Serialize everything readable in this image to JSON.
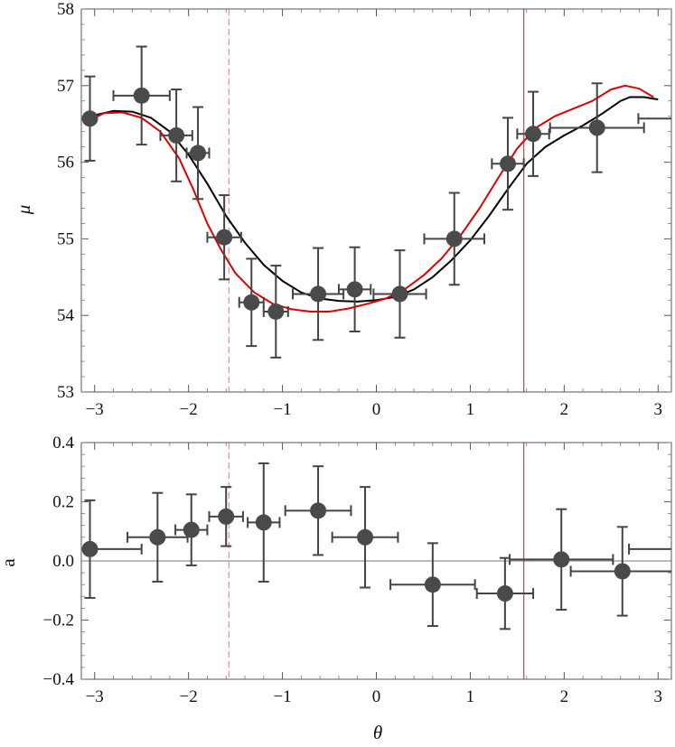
{
  "chart_data": [
    {
      "type": "scatter",
      "panel": "top",
      "ylabel": "μ",
      "xlim": [
        -3.14159,
        3.14159
      ],
      "ylim": [
        53,
        58
      ],
      "xticks": [
        -3,
        -2,
        -1,
        0,
        1,
        2,
        3
      ],
      "yticks": [
        53,
        54,
        55,
        56,
        57,
        58
      ],
      "vlines": [
        {
          "x": -1.5708,
          "color": "#e07a7a",
          "style": "dashed"
        },
        {
          "x": 1.5708,
          "color": "#b22222",
          "style": "solid"
        }
      ],
      "points": [
        {
          "x": -3.05,
          "y": 56.57,
          "xerr": [
            0.0,
            0.0
          ],
          "yerr": 0.55
        },
        {
          "x": -2.5,
          "y": 56.87,
          "xerr": [
            0.3,
            0.3
          ],
          "yerr": 0.64
        },
        {
          "x": -2.13,
          "y": 56.35,
          "xerr": [
            0.17,
            0.17
          ],
          "yerr": 0.6
        },
        {
          "x": -1.9,
          "y": 56.12,
          "xerr": [
            0.12,
            0.12
          ],
          "yerr": 0.6
        },
        {
          "x": -1.62,
          "y": 55.02,
          "xerr": [
            0.18,
            0.18
          ],
          "yerr": 0.55
        },
        {
          "x": -1.33,
          "y": 54.17,
          "xerr": [
            0.13,
            0.13
          ],
          "yerr": 0.57
        },
        {
          "x": -1.07,
          "y": 54.05,
          "xerr": [
            0.13,
            0.13
          ],
          "yerr": 0.6
        },
        {
          "x": -0.62,
          "y": 54.28,
          "xerr": [
            0.27,
            0.27
          ],
          "yerr": 0.6
        },
        {
          "x": -0.23,
          "y": 54.34,
          "xerr": [
            0.17,
            0.17
          ],
          "yerr": 0.55
        },
        {
          "x": 0.25,
          "y": 54.28,
          "xerr": [
            0.28,
            0.28
          ],
          "yerr": 0.57
        },
        {
          "x": 0.83,
          "y": 55.0,
          "xerr": [
            0.32,
            0.32
          ],
          "yerr": 0.6
        },
        {
          "x": 1.4,
          "y": 55.98,
          "xerr": [
            0.17,
            0.17
          ],
          "yerr": 0.6
        },
        {
          "x": 1.67,
          "y": 56.37,
          "xerr": [
            0.17,
            0.17
          ],
          "yerr": 0.55
        },
        {
          "x": 2.35,
          "y": 56.45,
          "xerr": [
            0.5,
            0.5
          ],
          "yerr": 0.58
        },
        {
          "x": 3.14,
          "y": 56.57,
          "xerr": [
            0.35,
            0.0
          ],
          "yerr": 0.0
        }
      ],
      "curves": [
        {
          "color": "#000000",
          "x": [
            -3.05,
            -2.8,
            -2.6,
            -2.4,
            -2.2,
            -2.0,
            -1.8,
            -1.6,
            -1.4,
            -1.2,
            -1.0,
            -0.8,
            -0.6,
            -0.4,
            -0.2,
            0.0,
            0.2,
            0.4,
            0.6,
            0.8,
            1.0,
            1.2,
            1.4,
            1.6,
            1.8,
            2.0,
            2.2,
            2.4,
            2.6,
            2.7,
            2.85,
            3.0
          ],
          "y": [
            56.6,
            56.67,
            56.66,
            56.58,
            56.4,
            56.1,
            55.72,
            55.3,
            54.95,
            54.66,
            54.45,
            54.3,
            54.22,
            54.19,
            54.18,
            54.2,
            54.24,
            54.34,
            54.5,
            54.72,
            54.98,
            55.3,
            55.65,
            55.98,
            56.2,
            56.35,
            56.48,
            56.63,
            56.8,
            56.85,
            56.85,
            56.82
          ]
        },
        {
          "color": "#e00000",
          "x": [
            -3.05,
            -2.9,
            -2.7,
            -2.5,
            -2.3,
            -2.1,
            -1.95,
            -1.8,
            -1.65,
            -1.5,
            -1.3,
            -1.1,
            -0.9,
            -0.7,
            -0.5,
            -0.3,
            -0.1,
            0.1,
            0.3,
            0.5,
            0.7,
            0.9,
            1.1,
            1.3,
            1.5,
            1.7,
            1.9,
            2.1,
            2.3,
            2.5,
            2.65,
            2.8,
            2.95
          ],
          "y": [
            56.55,
            56.64,
            56.65,
            56.58,
            56.4,
            56.05,
            55.65,
            55.2,
            54.85,
            54.55,
            54.3,
            54.15,
            54.08,
            54.05,
            54.05,
            54.09,
            54.15,
            54.22,
            54.34,
            54.52,
            54.75,
            55.05,
            55.4,
            55.8,
            56.18,
            56.45,
            56.6,
            56.7,
            56.8,
            56.95,
            57.0,
            56.96,
            56.85
          ]
        }
      ]
    },
    {
      "type": "scatter",
      "panel": "bottom",
      "xlabel": "θ",
      "ylabel": "a",
      "xlim": [
        -3.14159,
        3.14159
      ],
      "ylim": [
        -0.4,
        0.4
      ],
      "xticks": [
        -3,
        -2,
        -1,
        0,
        1,
        2,
        3
      ],
      "yticks": [
        -0.4,
        -0.2,
        0.0,
        0.2,
        0.4
      ],
      "ytick_labels": [
        "−0.4",
        "−0.2",
        "0.0",
        "0.2",
        "0.4"
      ],
      "hline": 0.0,
      "vlines": [
        {
          "x": -1.5708,
          "color": "#e07a7a",
          "style": "dashed"
        },
        {
          "x": 1.5708,
          "color": "#b22222",
          "style": "solid"
        }
      ],
      "points": [
        {
          "x": -3.05,
          "y": 0.04,
          "xerr": [
            0.0,
            0.55
          ],
          "yerr": 0.165
        },
        {
          "x": -2.33,
          "y": 0.08,
          "xerr": [
            0.32,
            0.32
          ],
          "yerr": 0.15
        },
        {
          "x": -1.97,
          "y": 0.105,
          "xerr": [
            0.17,
            0.17
          ],
          "yerr": 0.12
        },
        {
          "x": -1.6,
          "y": 0.15,
          "xerr": [
            0.18,
            0.18
          ],
          "yerr": 0.1
        },
        {
          "x": -1.2,
          "y": 0.13,
          "xerr": [
            0.17,
            0.17
          ],
          "yerr": 0.2
        },
        {
          "x": -0.62,
          "y": 0.17,
          "xerr": [
            0.35,
            0.35
          ],
          "yerr": 0.15
        },
        {
          "x": -0.12,
          "y": 0.08,
          "xerr": [
            0.35,
            0.35
          ],
          "yerr": 0.17
        },
        {
          "x": 0.6,
          "y": -0.08,
          "xerr": [
            0.45,
            0.45
          ],
          "yerr": 0.14
        },
        {
          "x": 1.37,
          "y": -0.11,
          "xerr": [
            0.3,
            0.3
          ],
          "yerr": 0.12
        },
        {
          "x": 1.97,
          "y": 0.005,
          "xerr": [
            0.55,
            0.55
          ],
          "yerr": 0.17
        },
        {
          "x": 2.62,
          "y": -0.035,
          "xerr": [
            0.55,
            0.55
          ],
          "yerr": 0.15
        },
        {
          "x": 3.14,
          "y": 0.04,
          "xerr": [
            0.45,
            0.0
          ],
          "yerr": 0.0
        }
      ]
    }
  ]
}
